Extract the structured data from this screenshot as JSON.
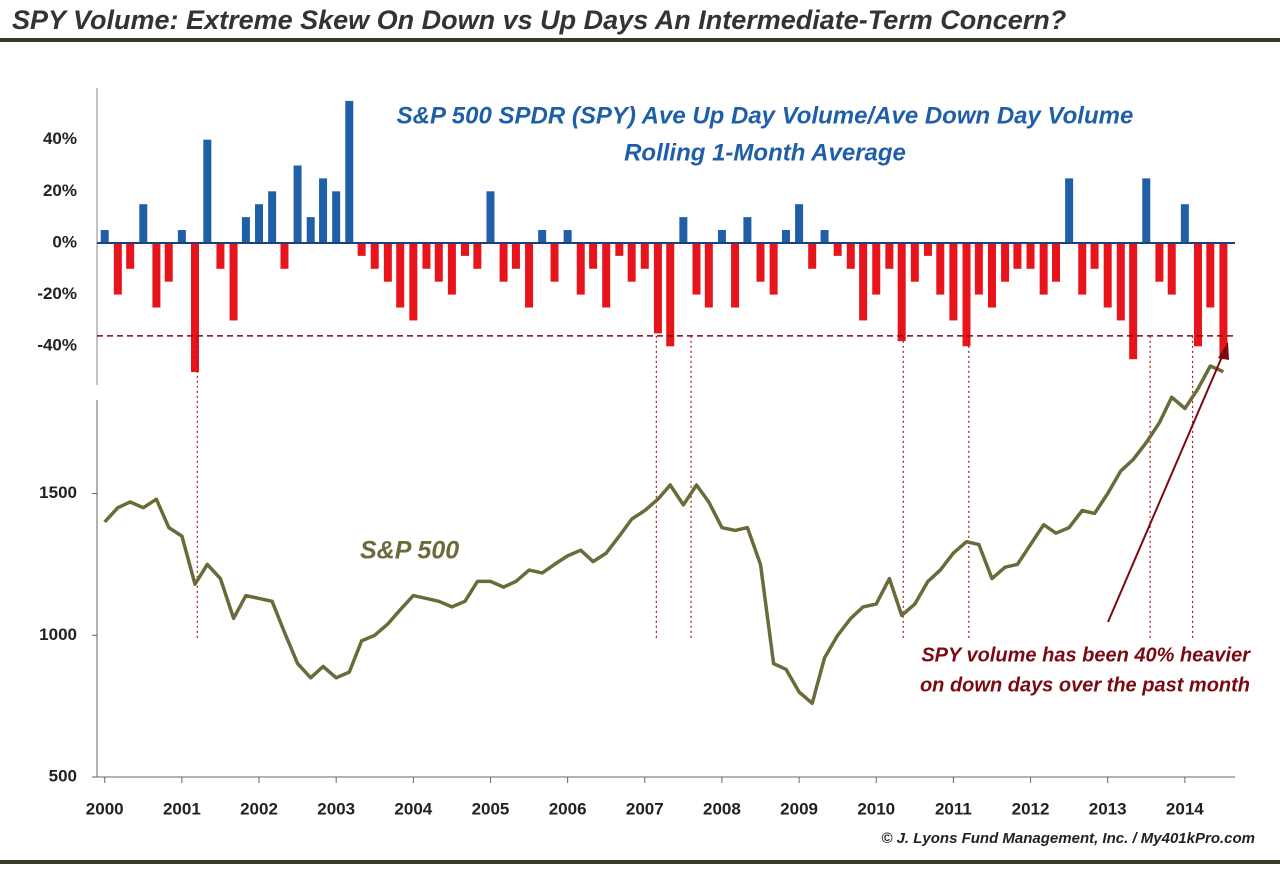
{
  "title": "SPY Volume: Extreme Skew On Down vs Up Days An Intermediate-Term Concern?",
  "credit": "© J. Lyons Fund Management, Inc. / My401kPro.com",
  "chart_data": [
    {
      "type": "bar",
      "title": [
        "S&P 500 SPDR (SPY) Ave Up Day Volume/Ave Down Day Volume",
        "Rolling 1-Month Average"
      ],
      "positive_color": "#1f5fa8",
      "negative_color": "#e8141c",
      "threshold": -36,
      "highlight_x": [
        2001.2,
        2007.15,
        2007.6,
        2010.35,
        2011.2,
        2013.55,
        2014.1
      ],
      "xlim": [
        1999.9,
        2014.65
      ],
      "ylim": [
        -55,
        60
      ],
      "yticks": [
        {
          "value": 40,
          "label": "40%"
        },
        {
          "value": 20,
          "label": "20%"
        },
        {
          "value": 0,
          "label": "0%"
        },
        {
          "value": -20,
          "label": "-20%"
        },
        {
          "value": -40,
          "label": "-40%"
        }
      ],
      "x": [
        2000,
        2000.17,
        2000.33,
        2000.5,
        2000.67,
        2000.83,
        2001,
        2001.17,
        2001.33,
        2001.5,
        2001.67,
        2001.83,
        2002,
        2002.17,
        2002.33,
        2002.5,
        2002.67,
        2002.83,
        2003,
        2003.17,
        2003.33,
        2003.5,
        2003.67,
        2003.83,
        2004,
        2004.17,
        2004.33,
        2004.5,
        2004.67,
        2004.83,
        2005,
        2005.17,
        2005.33,
        2005.5,
        2005.67,
        2005.83,
        2006,
        2006.17,
        2006.33,
        2006.5,
        2006.67,
        2006.83,
        2007,
        2007.17,
        2007.33,
        2007.5,
        2007.67,
        2007.83,
        2008,
        2008.17,
        2008.33,
        2008.5,
        2008.67,
        2008.83,
        2009,
        2009.17,
        2009.33,
        2009.5,
        2009.67,
        2009.83,
        2010,
        2010.17,
        2010.33,
        2010.5,
        2010.67,
        2010.83,
        2011,
        2011.17,
        2011.33,
        2011.5,
        2011.67,
        2011.83,
        2012,
        2012.17,
        2012.33,
        2012.5,
        2012.67,
        2012.83,
        2013,
        2013.17,
        2013.33,
        2013.5,
        2013.67,
        2013.83,
        2014,
        2014.17,
        2014.33,
        2014.5
      ],
      "values": [
        5,
        -20,
        -10,
        15,
        -25,
        -15,
        5,
        -50,
        40,
        -10,
        -30,
        10,
        15,
        20,
        -10,
        30,
        10,
        25,
        20,
        55,
        -5,
        -10,
        -15,
        -25,
        -30,
        -10,
        -15,
        -20,
        -5,
        -10,
        20,
        -15,
        -10,
        -25,
        5,
        -15,
        5,
        -20,
        -10,
        -25,
        -5,
        -15,
        -10,
        -35,
        -40,
        10,
        -20,
        -25,
        5,
        -25,
        10,
        -15,
        -20,
        5,
        15,
        -10,
        5,
        -5,
        -10,
        -30,
        -20,
        -10,
        -38,
        -15,
        -5,
        -20,
        -30,
        -40,
        -20,
        -25,
        -15,
        -10,
        -10,
        -20,
        -15,
        25,
        -20,
        -10,
        -25,
        -30,
        -45,
        25,
        -15,
        -20,
        15,
        -40,
        -25,
        -45
      ]
    },
    {
      "type": "line",
      "series": [
        {
          "name": "S&P 500",
          "color": "#6b6b3a",
          "values": [
            1400,
            1450,
            1470,
            1450,
            1480,
            1380,
            1350,
            1180,
            1250,
            1200,
            1060,
            1140,
            1130,
            1120,
            1010,
            900,
            850,
            890,
            850,
            870,
            980,
            1000,
            1040,
            1090,
            1140,
            1130,
            1120,
            1100,
            1120,
            1190,
            1190,
            1170,
            1190,
            1230,
            1220,
            1250,
            1280,
            1300,
            1260,
            1290,
            1350,
            1410,
            1440,
            1480,
            1530,
            1460,
            1530,
            1470,
            1380,
            1370,
            1380,
            1250,
            900,
            880,
            800,
            760,
            920,
            1000,
            1060,
            1100,
            1110,
            1200,
            1070,
            1110,
            1190,
            1230,
            1290,
            1330,
            1320,
            1200,
            1240,
            1250,
            1320,
            1390,
            1360,
            1380,
            1440,
            1430,
            1500,
            1580,
            1620,
            1680,
            1750,
            1840,
            1800,
            1870,
            1950,
            1930
          ]
        }
      ],
      "x": [
        2000,
        2000.17,
        2000.33,
        2000.5,
        2000.67,
        2000.83,
        2001,
        2001.17,
        2001.33,
        2001.5,
        2001.67,
        2001.83,
        2002,
        2002.17,
        2002.33,
        2002.5,
        2002.67,
        2002.83,
        2003,
        2003.17,
        2003.33,
        2003.5,
        2003.67,
        2003.83,
        2004,
        2004.17,
        2004.33,
        2004.5,
        2004.67,
        2004.83,
        2005,
        2005.17,
        2005.33,
        2005.5,
        2005.67,
        2005.83,
        2006,
        2006.17,
        2006.33,
        2006.5,
        2006.67,
        2006.83,
        2007,
        2007.17,
        2007.33,
        2007.5,
        2007.67,
        2007.83,
        2008,
        2008.17,
        2008.33,
        2008.5,
        2008.67,
        2008.83,
        2009,
        2009.17,
        2009.33,
        2009.5,
        2009.67,
        2009.83,
        2010,
        2010.17,
        2010.33,
        2010.5,
        2010.67,
        2010.83,
        2011,
        2011.17,
        2011.33,
        2011.5,
        2011.67,
        2011.83,
        2012,
        2012.17,
        2012.33,
        2012.5,
        2012.67,
        2012.83,
        2013,
        2013.17,
        2013.33,
        2013.5,
        2013.67,
        2013.83,
        2014,
        2014.17,
        2014.33,
        2014.5
      ],
      "xlim": [
        1999.9,
        2014.65
      ],
      "ylim": [
        500,
        1830
      ],
      "xticks": [
        2000,
        2001,
        2002,
        2003,
        2004,
        2005,
        2006,
        2007,
        2008,
        2009,
        2010,
        2011,
        2012,
        2013,
        2014
      ],
      "yticks": [
        500,
        1000,
        1500
      ],
      "annotation": [
        "SPY volume has been 40% heavier",
        "on down days over the past month"
      ],
      "annotation_color": "#7a0a12"
    }
  ]
}
